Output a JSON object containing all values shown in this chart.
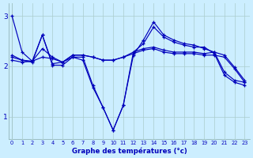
{
  "xlabel": "Graphe des températures (°c)",
  "background_color": "#cceeff",
  "line_color": "#0000bb",
  "grid_color": "#aacccc",
  "x_ticks": [
    0,
    1,
    2,
    3,
    4,
    5,
    6,
    7,
    8,
    9,
    10,
    11,
    12,
    13,
    14,
    15,
    16,
    17,
    18,
    19,
    20,
    21,
    22,
    23
  ],
  "y_ticks": [
    1,
    2,
    3
  ],
  "ylim": [
    0.55,
    3.25
  ],
  "xlim": [
    -0.3,
    23.5
  ],
  "curves": [
    [
      3.0,
      2.28,
      2.1,
      2.62,
      2.05,
      2.08,
      2.18,
      2.18,
      1.62,
      1.18,
      0.73,
      1.22,
      2.22,
      2.52,
      2.88,
      2.62,
      2.52,
      2.45,
      2.42,
      2.35,
      2.28,
      1.88,
      1.72,
      1.68
    ],
    [
      2.22,
      2.12,
      2.08,
      2.62,
      2.02,
      2.02,
      2.18,
      2.12,
      1.58,
      1.18,
      0.73,
      1.22,
      2.28,
      2.45,
      2.78,
      2.58,
      2.48,
      2.42,
      2.38,
      2.38,
      2.25,
      1.82,
      1.68,
      1.62
    ],
    [
      2.18,
      2.12,
      2.1,
      2.35,
      2.18,
      2.08,
      2.22,
      2.22,
      2.18,
      2.12,
      2.12,
      2.18,
      2.28,
      2.35,
      2.38,
      2.32,
      2.28,
      2.28,
      2.28,
      2.25,
      2.28,
      2.22,
      1.98,
      1.72
    ],
    [
      2.12,
      2.08,
      2.1,
      2.18,
      2.15,
      2.08,
      2.22,
      2.22,
      2.18,
      2.12,
      2.12,
      2.18,
      2.25,
      2.32,
      2.35,
      2.28,
      2.25,
      2.25,
      2.25,
      2.22,
      2.22,
      2.18,
      1.95,
      1.68
    ]
  ]
}
